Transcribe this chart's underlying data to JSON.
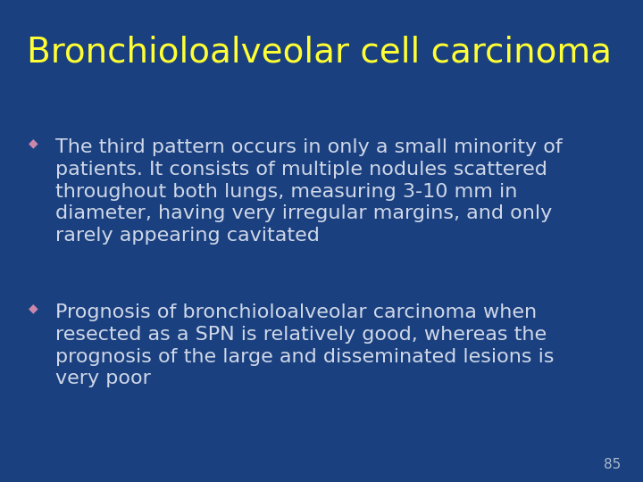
{
  "background_color": "#1a4080",
  "title": "Bronchioloalveolar cell carcinoma",
  "title_color": "#ffff33",
  "title_fontsize": 28,
  "title_fontweight": "normal",
  "bullet_color": "#d0d8e8",
  "bullet_marker_color": "#cc88aa",
  "bullet_fontsize": 16,
  "page_number": "85",
  "page_number_color": "#aabbcc",
  "page_number_fontsize": 11,
  "bullet_lines": [
    [
      "The third pattern occurs in only a small minority of",
      "patients. It consists of multiple nodules scattered",
      "throughout both lungs, measuring 3-10 mm in",
      "diameter, having very irregular margins, and only",
      "rarely appearing cavitated"
    ],
    [
      "Prognosis of bronchioloalveolar carcinoma when",
      "resected as a SPN is relatively good, whereas the",
      "prognosis of the large and disseminated lesions is",
      "very poor"
    ]
  ]
}
